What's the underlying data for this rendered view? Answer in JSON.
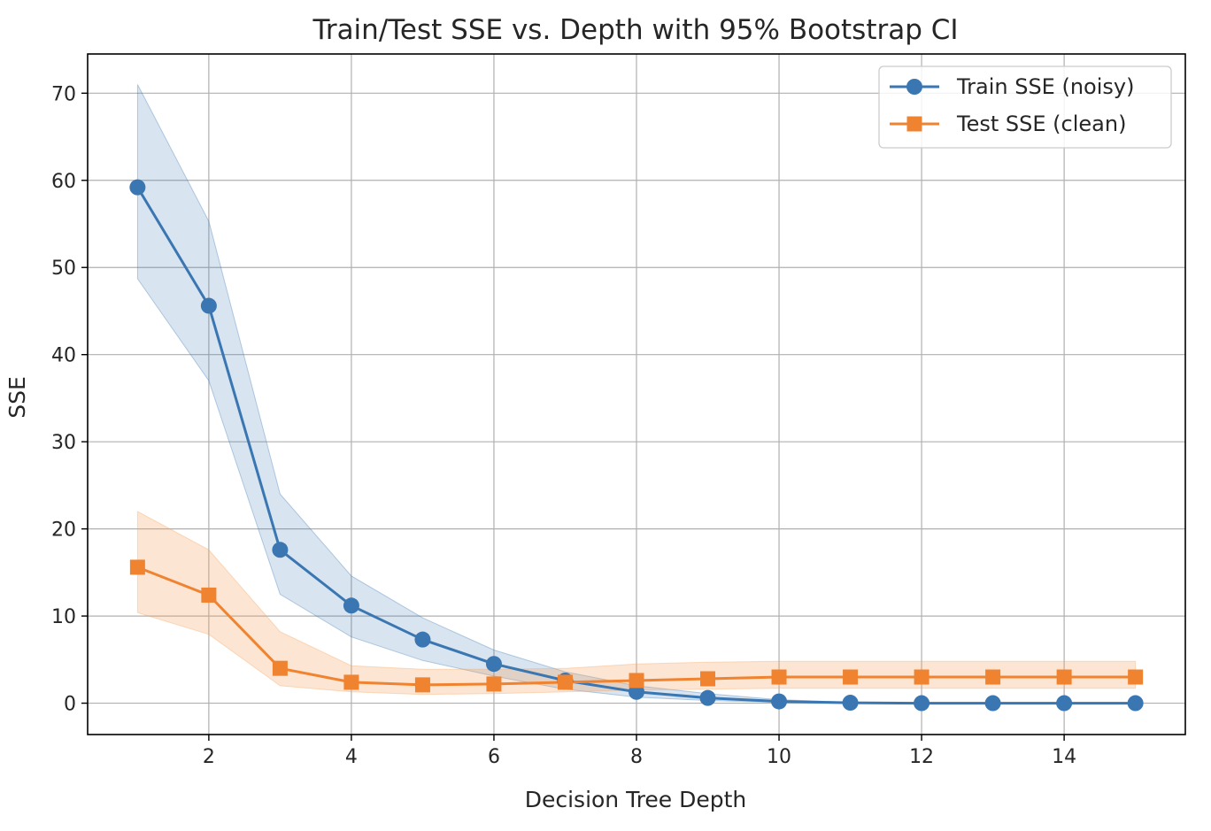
{
  "chart_data": {
    "type": "line",
    "title": "Train/Test SSE vs. Depth with 95% Bootstrap CI",
    "xlabel": "Decision Tree Depth",
    "ylabel": "SSE",
    "xlim": [
      0.3,
      15.7
    ],
    "ylim": [
      -3.6,
      74.5
    ],
    "x_ticks": [
      2,
      4,
      6,
      8,
      10,
      12,
      14
    ],
    "y_ticks": [
      0,
      10,
      20,
      30,
      40,
      50,
      60,
      70
    ],
    "grid": true,
    "legend_position": "top-right",
    "x": [
      1,
      2,
      3,
      4,
      5,
      6,
      7,
      8,
      9,
      10,
      11,
      12,
      13,
      14,
      15
    ],
    "series": [
      {
        "name": "Train SSE (noisy)",
        "color": "#3a76b2",
        "band_color": "#3a76b2",
        "marker": "circle",
        "values": [
          59.2,
          45.6,
          17.6,
          11.2,
          7.3,
          4.5,
          2.6,
          1.3,
          0.6,
          0.2,
          0.05,
          0.0,
          0.0,
          0.0,
          0.0
        ],
        "ci_lower": [
          48.7,
          37.0,
          12.5,
          7.6,
          4.9,
          3.1,
          1.6,
          0.7,
          0.3,
          0.1,
          0.0,
          0.0,
          0.0,
          0.0,
          0.0
        ],
        "ci_upper": [
          71.0,
          55.3,
          24.0,
          14.6,
          9.8,
          6.1,
          3.6,
          2.0,
          1.1,
          0.4,
          0.1,
          0.0,
          0.0,
          0.0,
          0.0
        ]
      },
      {
        "name": "Test SSE (clean)",
        "color": "#f08330",
        "band_color": "#f5a25c",
        "marker": "square",
        "values": [
          15.6,
          12.4,
          4.0,
          2.4,
          2.1,
          2.2,
          2.4,
          2.6,
          2.8,
          3.0,
          3.0,
          3.0,
          3.0,
          3.0,
          3.0
        ],
        "ci_lower": [
          10.4,
          7.9,
          2.0,
          1.3,
          1.0,
          1.1,
          1.3,
          1.5,
          1.6,
          1.7,
          1.7,
          1.7,
          1.7,
          1.7,
          1.7
        ],
        "ci_upper": [
          22.0,
          17.6,
          8.2,
          4.3,
          3.9,
          3.9,
          4.0,
          4.5,
          4.7,
          4.8,
          4.8,
          4.8,
          4.8,
          4.8,
          4.8
        ]
      }
    ]
  }
}
